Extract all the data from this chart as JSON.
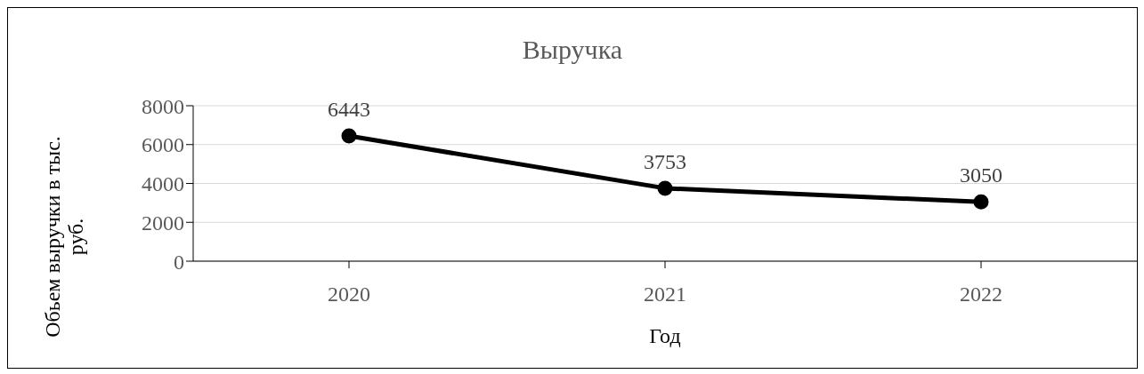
{
  "chart_data": {
    "type": "line",
    "title": "Выручка",
    "xlabel": "Год",
    "ylabel": "Обьем выручки в тыс. руб.",
    "categories": [
      "2020",
      "2021",
      "2022"
    ],
    "series": [
      {
        "color": "#000000",
        "values": [
          6443,
          3753,
          3050
        ]
      }
    ],
    "ylim": [
      0,
      8000
    ],
    "yticks": [
      0,
      2000,
      4000,
      6000,
      8000
    ],
    "grid": "y",
    "data_labels": true,
    "marker": "circle",
    "line_style": "solid",
    "legend": false
  }
}
